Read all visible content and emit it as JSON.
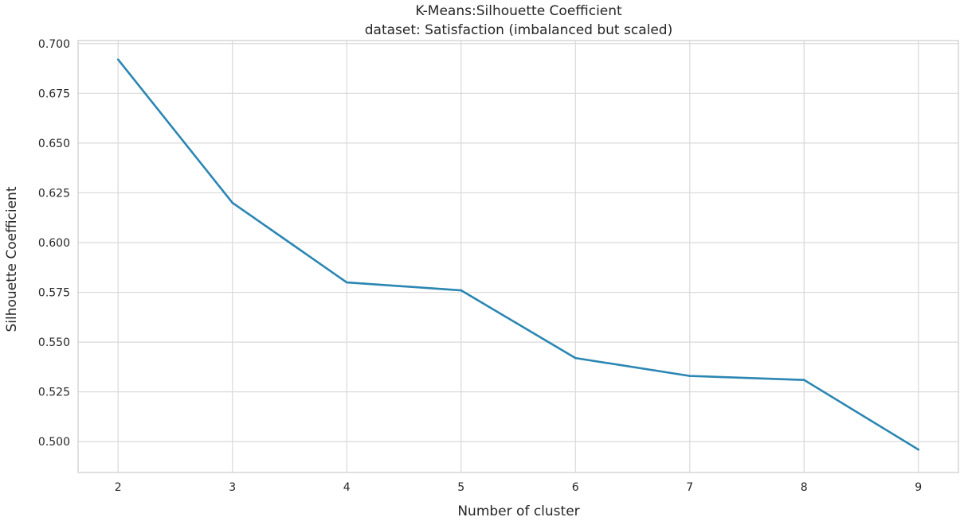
{
  "chart_data": {
    "type": "line",
    "title": "K-Means:Silhouette Coefficient",
    "subtitle": "dataset: Satisfaction (imbalanced but scaled)",
    "xlabel": "Number of cluster",
    "ylabel": "Silhouette Coefficient",
    "x": [
      2,
      3,
      4,
      5,
      6,
      7,
      8,
      9
    ],
    "x_ticks": [
      "2",
      "3",
      "4",
      "5",
      "6",
      "7",
      "8",
      "9"
    ],
    "y_ticks": [
      "0.500",
      "0.525",
      "0.550",
      "0.575",
      "0.600",
      "0.625",
      "0.650",
      "0.675",
      "0.700"
    ],
    "xlim": [
      1.65,
      9.35
    ],
    "ylim": [
      0.4845,
      0.7015
    ],
    "grid": true,
    "series": [
      {
        "values": [
          0.692,
          0.62,
          0.58,
          0.576,
          0.542,
          0.533,
          0.531,
          0.496
        ],
        "color": "#2a86b3"
      }
    ],
    "colors": {
      "line": "#2a86b3",
      "grid": "#d9d9d9",
      "axes": "#cccccc",
      "text": "#262626"
    }
  }
}
